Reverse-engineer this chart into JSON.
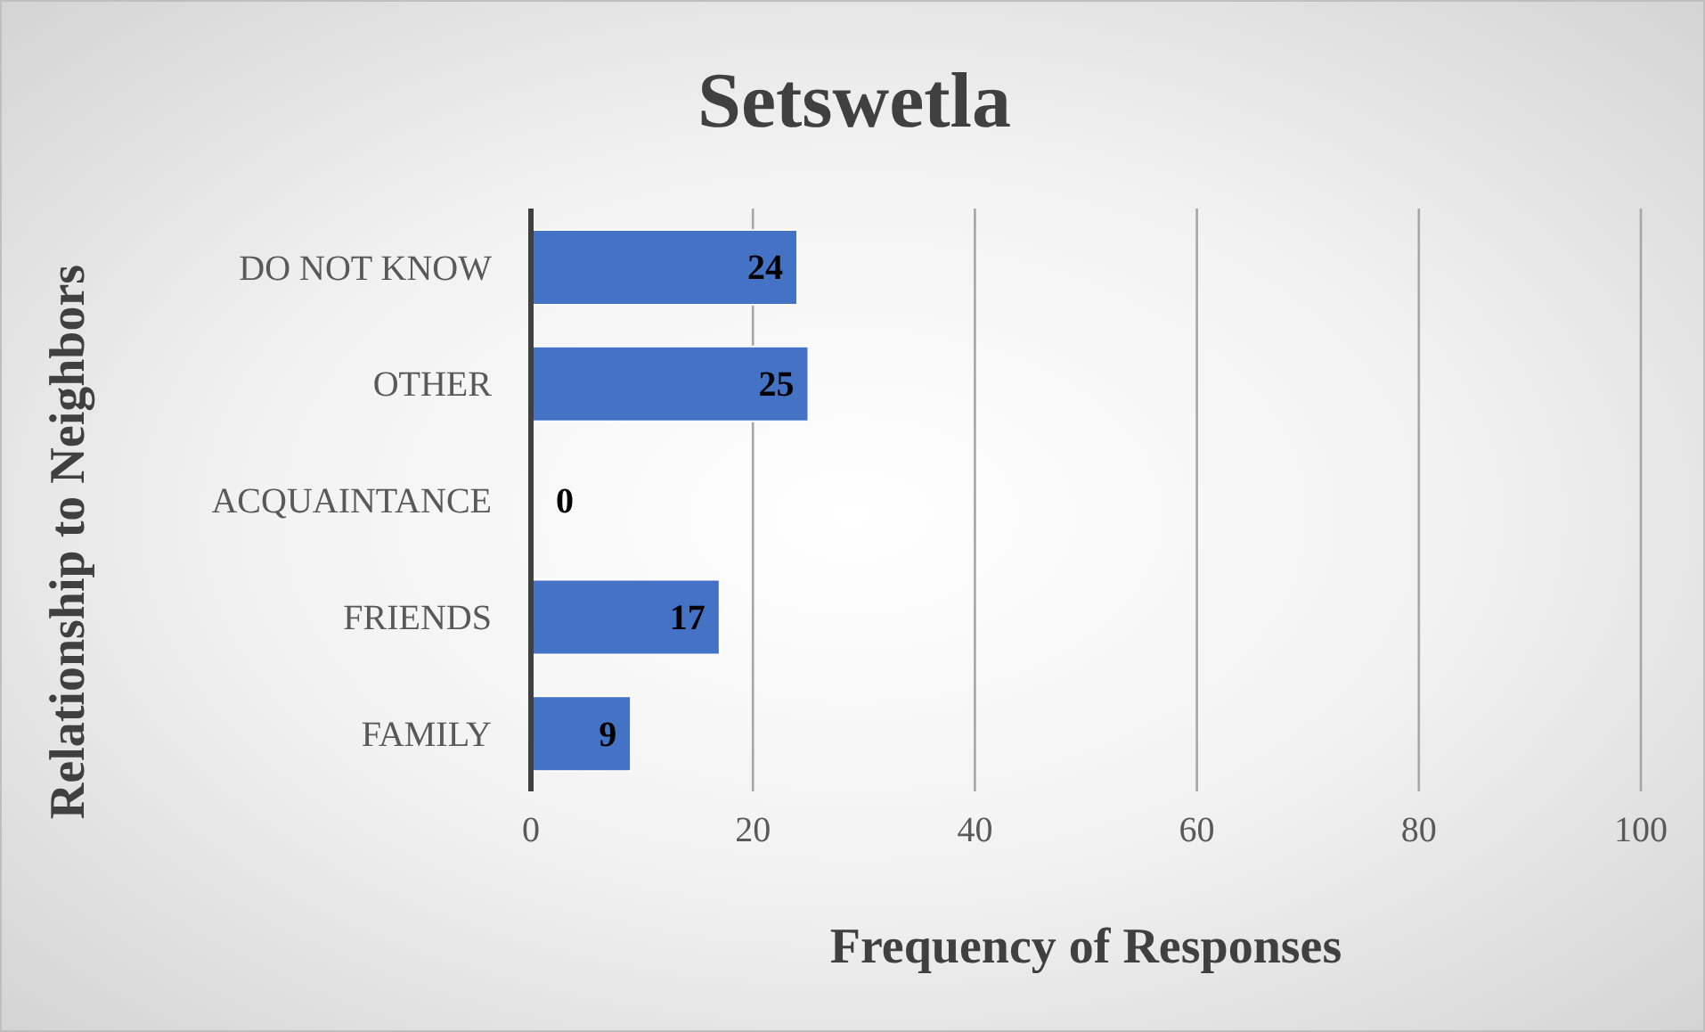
{
  "chart_data": {
    "type": "bar",
    "orientation": "horizontal",
    "title": "Setswetla",
    "xlabel": "Frequency of Responses",
    "ylabel": "Relationship to Neighbors",
    "categories": [
      "DO NOT KNOW",
      "OTHER",
      "ACQUAINTANCE",
      "FRIENDS",
      "FAMILY"
    ],
    "values": [
      24,
      25,
      0,
      17,
      9
    ],
    "color": "#4472c4",
    "xlim": [
      0,
      100
    ],
    "xticks": [
      0,
      20,
      40,
      60,
      80,
      100
    ],
    "grid": "x",
    "data_labels": true
  }
}
